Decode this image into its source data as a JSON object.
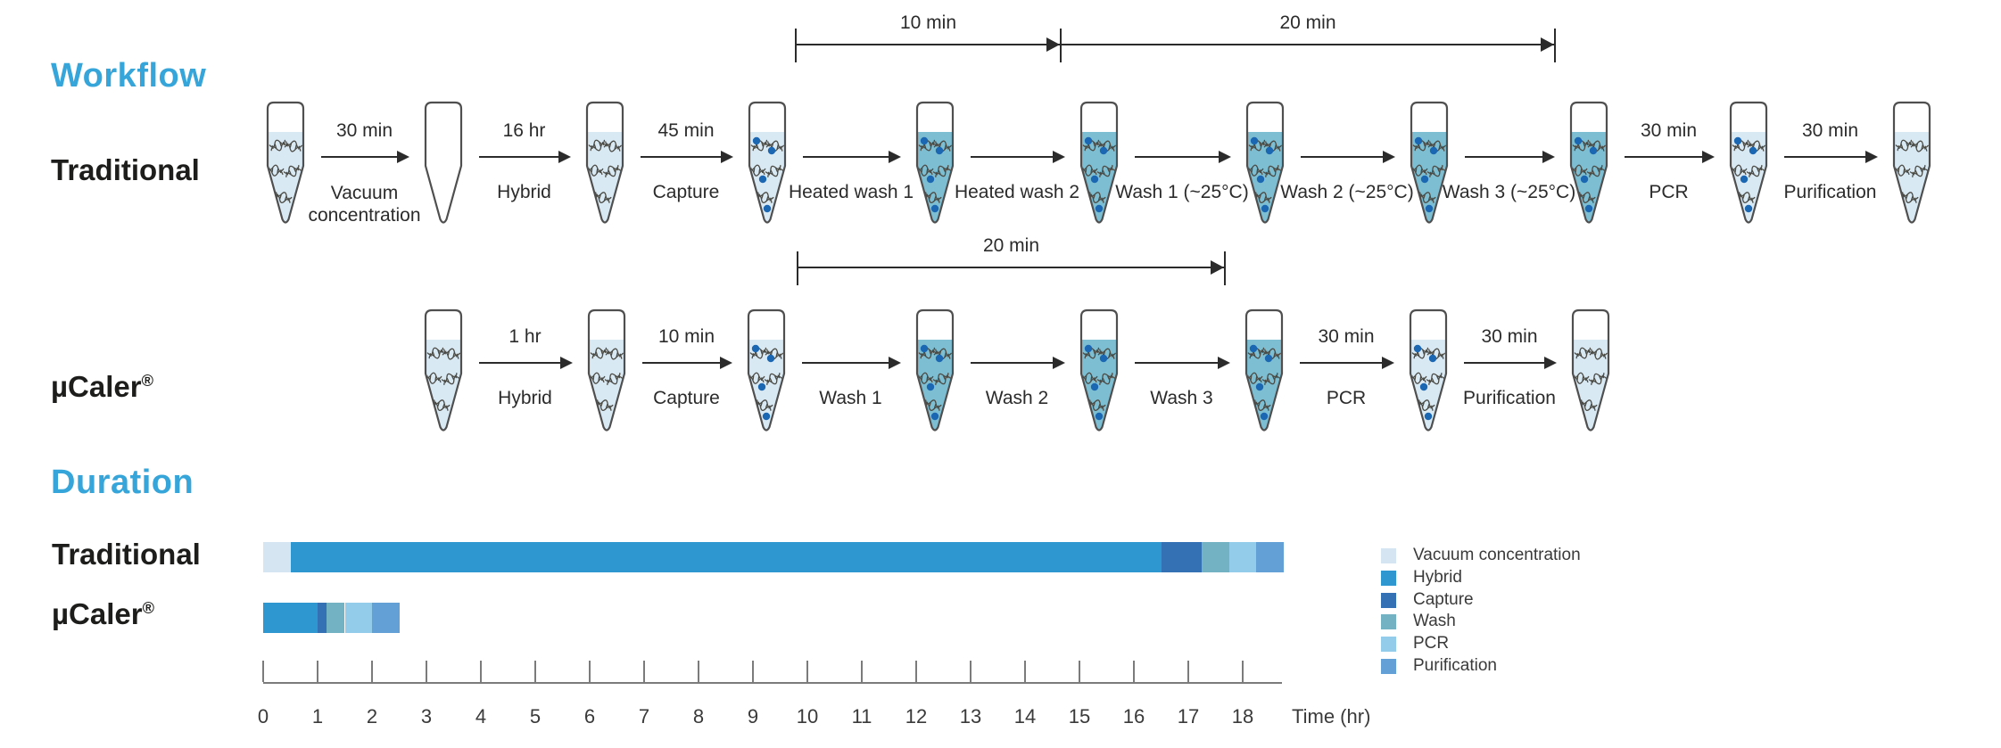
{
  "headings": {
    "workflow": "Workflow",
    "duration": "Duration"
  },
  "colors": {
    "accent": "#36a5d9",
    "text": "#1d1d1b",
    "arrow": "#2b2b2b",
    "axis": "#7b7b7b",
    "tube_outline": "#4f4f4f",
    "liquid_light": "#d9e9f4",
    "liquid_dark": "#7dbed2",
    "dna": "#4b4b45",
    "bead": "#1c67b2"
  },
  "workflow": {
    "rows": [
      {
        "label": "Traditional",
        "tubes": [
          "light-dna",
          "empty",
          "light-dna",
          "light-dna-beads",
          "teal-dna-beads",
          "teal-dna-beads",
          "teal-dna-beads",
          "teal-dna-beads",
          "teal-dna-beads",
          "light-dna-beads",
          "light-dna"
        ],
        "steps": [
          {
            "time": "30 min",
            "label": "Vacuum concentration",
            "two_line": true
          },
          {
            "time": "16 hr",
            "label": "Hybrid"
          },
          {
            "time": "45 min",
            "label": "Capture"
          },
          {
            "label": "Heated wash 1"
          },
          {
            "label": "Heated wash 2"
          },
          {
            "label": "Wash 1 (~25°C)"
          },
          {
            "label": "Wash 2 (~25°C)"
          },
          {
            "label": "Wash 3 (~25°C)"
          },
          {
            "time": "30 min",
            "label": "PCR"
          },
          {
            "time": "30 min",
            "label": "Purification"
          }
        ]
      },
      {
        "label": "µCaler®",
        "tubes": [
          "light-dna",
          "light-dna",
          "light-dna-beads",
          "teal-dna-beads",
          "teal-dna-beads",
          "teal-dna-beads",
          "light-dna-beads",
          "light-dna"
        ],
        "steps": [
          {
            "time": "1 hr",
            "label": "Hybrid"
          },
          {
            "time": "10 min",
            "label": "Capture"
          },
          {
            "label": "Wash 1"
          },
          {
            "label": "Wash 2"
          },
          {
            "label": "Wash 3"
          },
          {
            "time": "30 min",
            "label": "PCR"
          },
          {
            "time": "30 min",
            "label": "Purification"
          }
        ]
      }
    ],
    "brackets": [
      {
        "text": "10 min"
      },
      {
        "text": "20 min"
      },
      {
        "text": "20 min"
      }
    ]
  },
  "chart_data": {
    "type": "bar",
    "variant": "horizontal-stacked",
    "title": "Duration",
    "categories": [
      "Traditional",
      "µCaler®"
    ],
    "series": [
      {
        "name": "Vacuum concentration",
        "color": "#d5e6f2",
        "values": [
          0.5,
          0
        ]
      },
      {
        "name": "Hybrid",
        "color": "#2e97cf",
        "values": [
          16,
          1
        ]
      },
      {
        "name": "Capture",
        "color": "#3470b4",
        "values": [
          0.75,
          0.17
        ]
      },
      {
        "name": "Wash",
        "color": "#73b2c3",
        "values": [
          0.5,
          0.33
        ]
      },
      {
        "name": "PCR",
        "color": "#93ccea",
        "values": [
          0.5,
          0.5
        ]
      },
      {
        "name": "Purification",
        "color": "#63a0d5",
        "values": [
          0.5,
          0.5
        ]
      }
    ],
    "totals_hr": [
      18.75,
      2.5
    ],
    "xlabel": "Time (hr)",
    "xlim": [
      0,
      18.7
    ],
    "xticks": [
      "0",
      "1",
      "2",
      "3",
      "4",
      "5",
      "6",
      "7",
      "8",
      "9",
      "10",
      "11",
      "12",
      "13",
      "14",
      "15",
      "16",
      "17",
      "18"
    ],
    "legend_position": "right",
    "grid": false
  }
}
